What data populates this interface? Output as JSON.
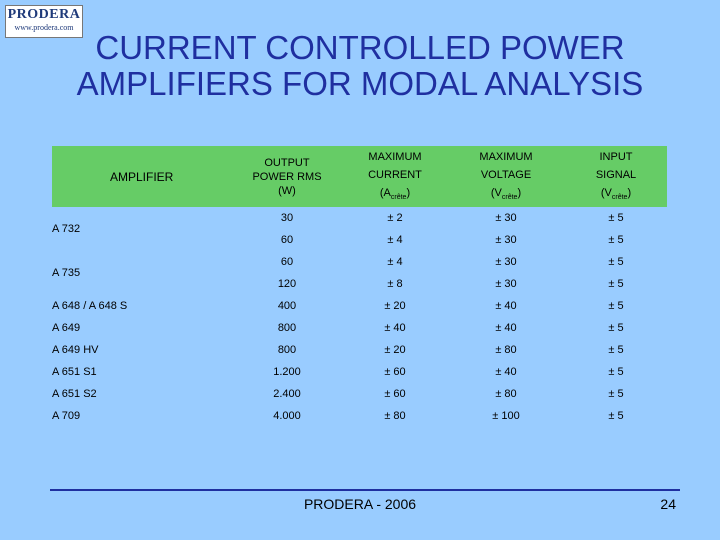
{
  "logo": {
    "brand": "PRODERA",
    "url": "www.prodera.com"
  },
  "title": {
    "line1": "CURRENT CONTROLLED POWER",
    "line2": "AMPLIFIERS FOR MODAL ANALYSIS"
  },
  "table": {
    "headers": {
      "amplifier": "AMPLIFIER",
      "power_l1": "OUTPUT",
      "power_l2": "POWER RMS",
      "power_l3": "(W)",
      "current_l1": "MAXIMUM",
      "current_l2": "CURRENT",
      "current_unit": "(A",
      "current_sub": "crête",
      "current_close": ")",
      "voltage_l1": "MAXIMUM",
      "voltage_l2": "VOLTAGE",
      "voltage_unit": "(V",
      "voltage_sub": "crête",
      "voltage_close": ")",
      "signal_l1": "INPUT",
      "signal_l2": "SIGNAL",
      "signal_unit": "(V",
      "signal_sub": "crête",
      "signal_close": ")"
    },
    "groups": {
      "a732": {
        "name": "A 732",
        "rows": [
          [
            "30",
            "± 2",
            "± 30",
            "± 5"
          ],
          [
            "60",
            "± 4",
            "± 30",
            "± 5"
          ]
        ]
      },
      "a735": {
        "name": "A 735",
        "rows": [
          [
            "60",
            "± 4",
            "± 30",
            "± 5"
          ],
          [
            "120",
            "± 8",
            "± 30",
            "± 5"
          ]
        ]
      }
    },
    "rows": [
      {
        "name": "A 648 / A 648 S",
        "power": "400",
        "current": "± 20",
        "voltage": "± 40",
        "signal": "± 5"
      },
      {
        "name": "A 649",
        "power": "800",
        "current": "± 40",
        "voltage": "± 40",
        "signal": "± 5"
      },
      {
        "name": "A 649 HV",
        "power": "800",
        "current": "± 20",
        "voltage": "± 80",
        "signal": "± 5"
      },
      {
        "name": "A 651 S1",
        "power": "1.200",
        "current": "± 60",
        "voltage": "± 40",
        "signal": "± 5"
      },
      {
        "name": "A 651 S2",
        "power": "2.400",
        "current": "± 60",
        "voltage": "± 80",
        "signal": "± 5"
      },
      {
        "name": "A 709",
        "power": "4.000",
        "current": "± 80",
        "voltage": "± 100",
        "signal": "± 5"
      }
    ]
  },
  "footer": {
    "text": "PRODERA - 2006",
    "page": "24"
  }
}
